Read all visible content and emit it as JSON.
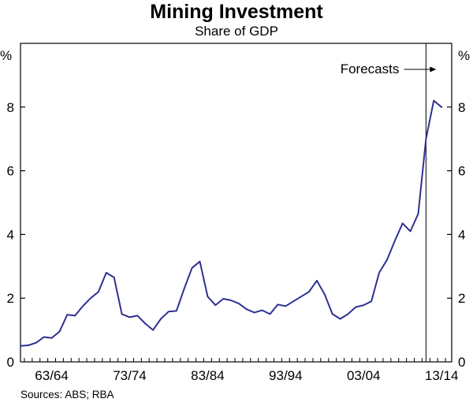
{
  "chart_data": {
    "type": "line",
    "title": "Mining Investment",
    "subtitle": "Share of GDP",
    "y_unit_left": "%",
    "y_unit_right": "%",
    "ylim": [
      0,
      10
    ],
    "yticks": [
      0,
      2,
      4,
      6,
      8
    ],
    "xlim": [
      1959.5,
      2014.8
    ],
    "xtick_labels": [
      {
        "label": "63/64",
        "year": 1963.5
      },
      {
        "label": "73/74",
        "year": 1973.5
      },
      {
        "label": "83/84",
        "year": 1983.5
      },
      {
        "label": "93/94",
        "year": 1993.5
      },
      {
        "label": "03/04",
        "year": 2003.5
      },
      {
        "label": "13/14",
        "year": 2013.5
      }
    ],
    "forecast_label": "Forecasts",
    "forecast_start": 2011.5,
    "source": "Sources: ABS; RBA",
    "grid": false,
    "series": [
      {
        "color": "#2e3192",
        "x": [
          1959.5,
          1960.5,
          1961.5,
          1962.5,
          1963.5,
          1964.5,
          1965.5,
          1966.5,
          1967.5,
          1968.5,
          1969.5,
          1970.5,
          1971.5,
          1972.5,
          1973.5,
          1974.5,
          1975.5,
          1976.5,
          1977.5,
          1978.5,
          1979.5,
          1980.5,
          1981.5,
          1982.5,
          1983.5,
          1984.5,
          1985.5,
          1986.5,
          1987.5,
          1988.5,
          1989.5,
          1990.5,
          1991.5,
          1992.5,
          1993.5,
          1994.5,
          1995.5,
          1996.5,
          1997.5,
          1998.5,
          1999.5,
          2000.5,
          2001.5,
          2002.5,
          2003.5,
          2004.5,
          2005.5,
          2006.5,
          2007.5,
          2008.5,
          2009.5,
          2010.5,
          2011.5,
          2012.5,
          2013.5
        ],
        "y": [
          0.5,
          0.52,
          0.6,
          0.78,
          0.75,
          0.95,
          1.48,
          1.45,
          1.75,
          2.0,
          2.2,
          2.8,
          2.65,
          1.5,
          1.4,
          1.45,
          1.2,
          1.0,
          1.35,
          1.58,
          1.6,
          2.3,
          2.95,
          3.15,
          2.05,
          1.78,
          1.98,
          1.93,
          1.83,
          1.65,
          1.55,
          1.62,
          1.5,
          1.8,
          1.75,
          1.9,
          2.05,
          2.2,
          2.55,
          2.12,
          1.5,
          1.35,
          1.5,
          1.72,
          1.78,
          1.9,
          2.8,
          3.2,
          3.8,
          4.35,
          4.1,
          4.65,
          7.0,
          8.2,
          8.0
        ]
      }
    ]
  }
}
